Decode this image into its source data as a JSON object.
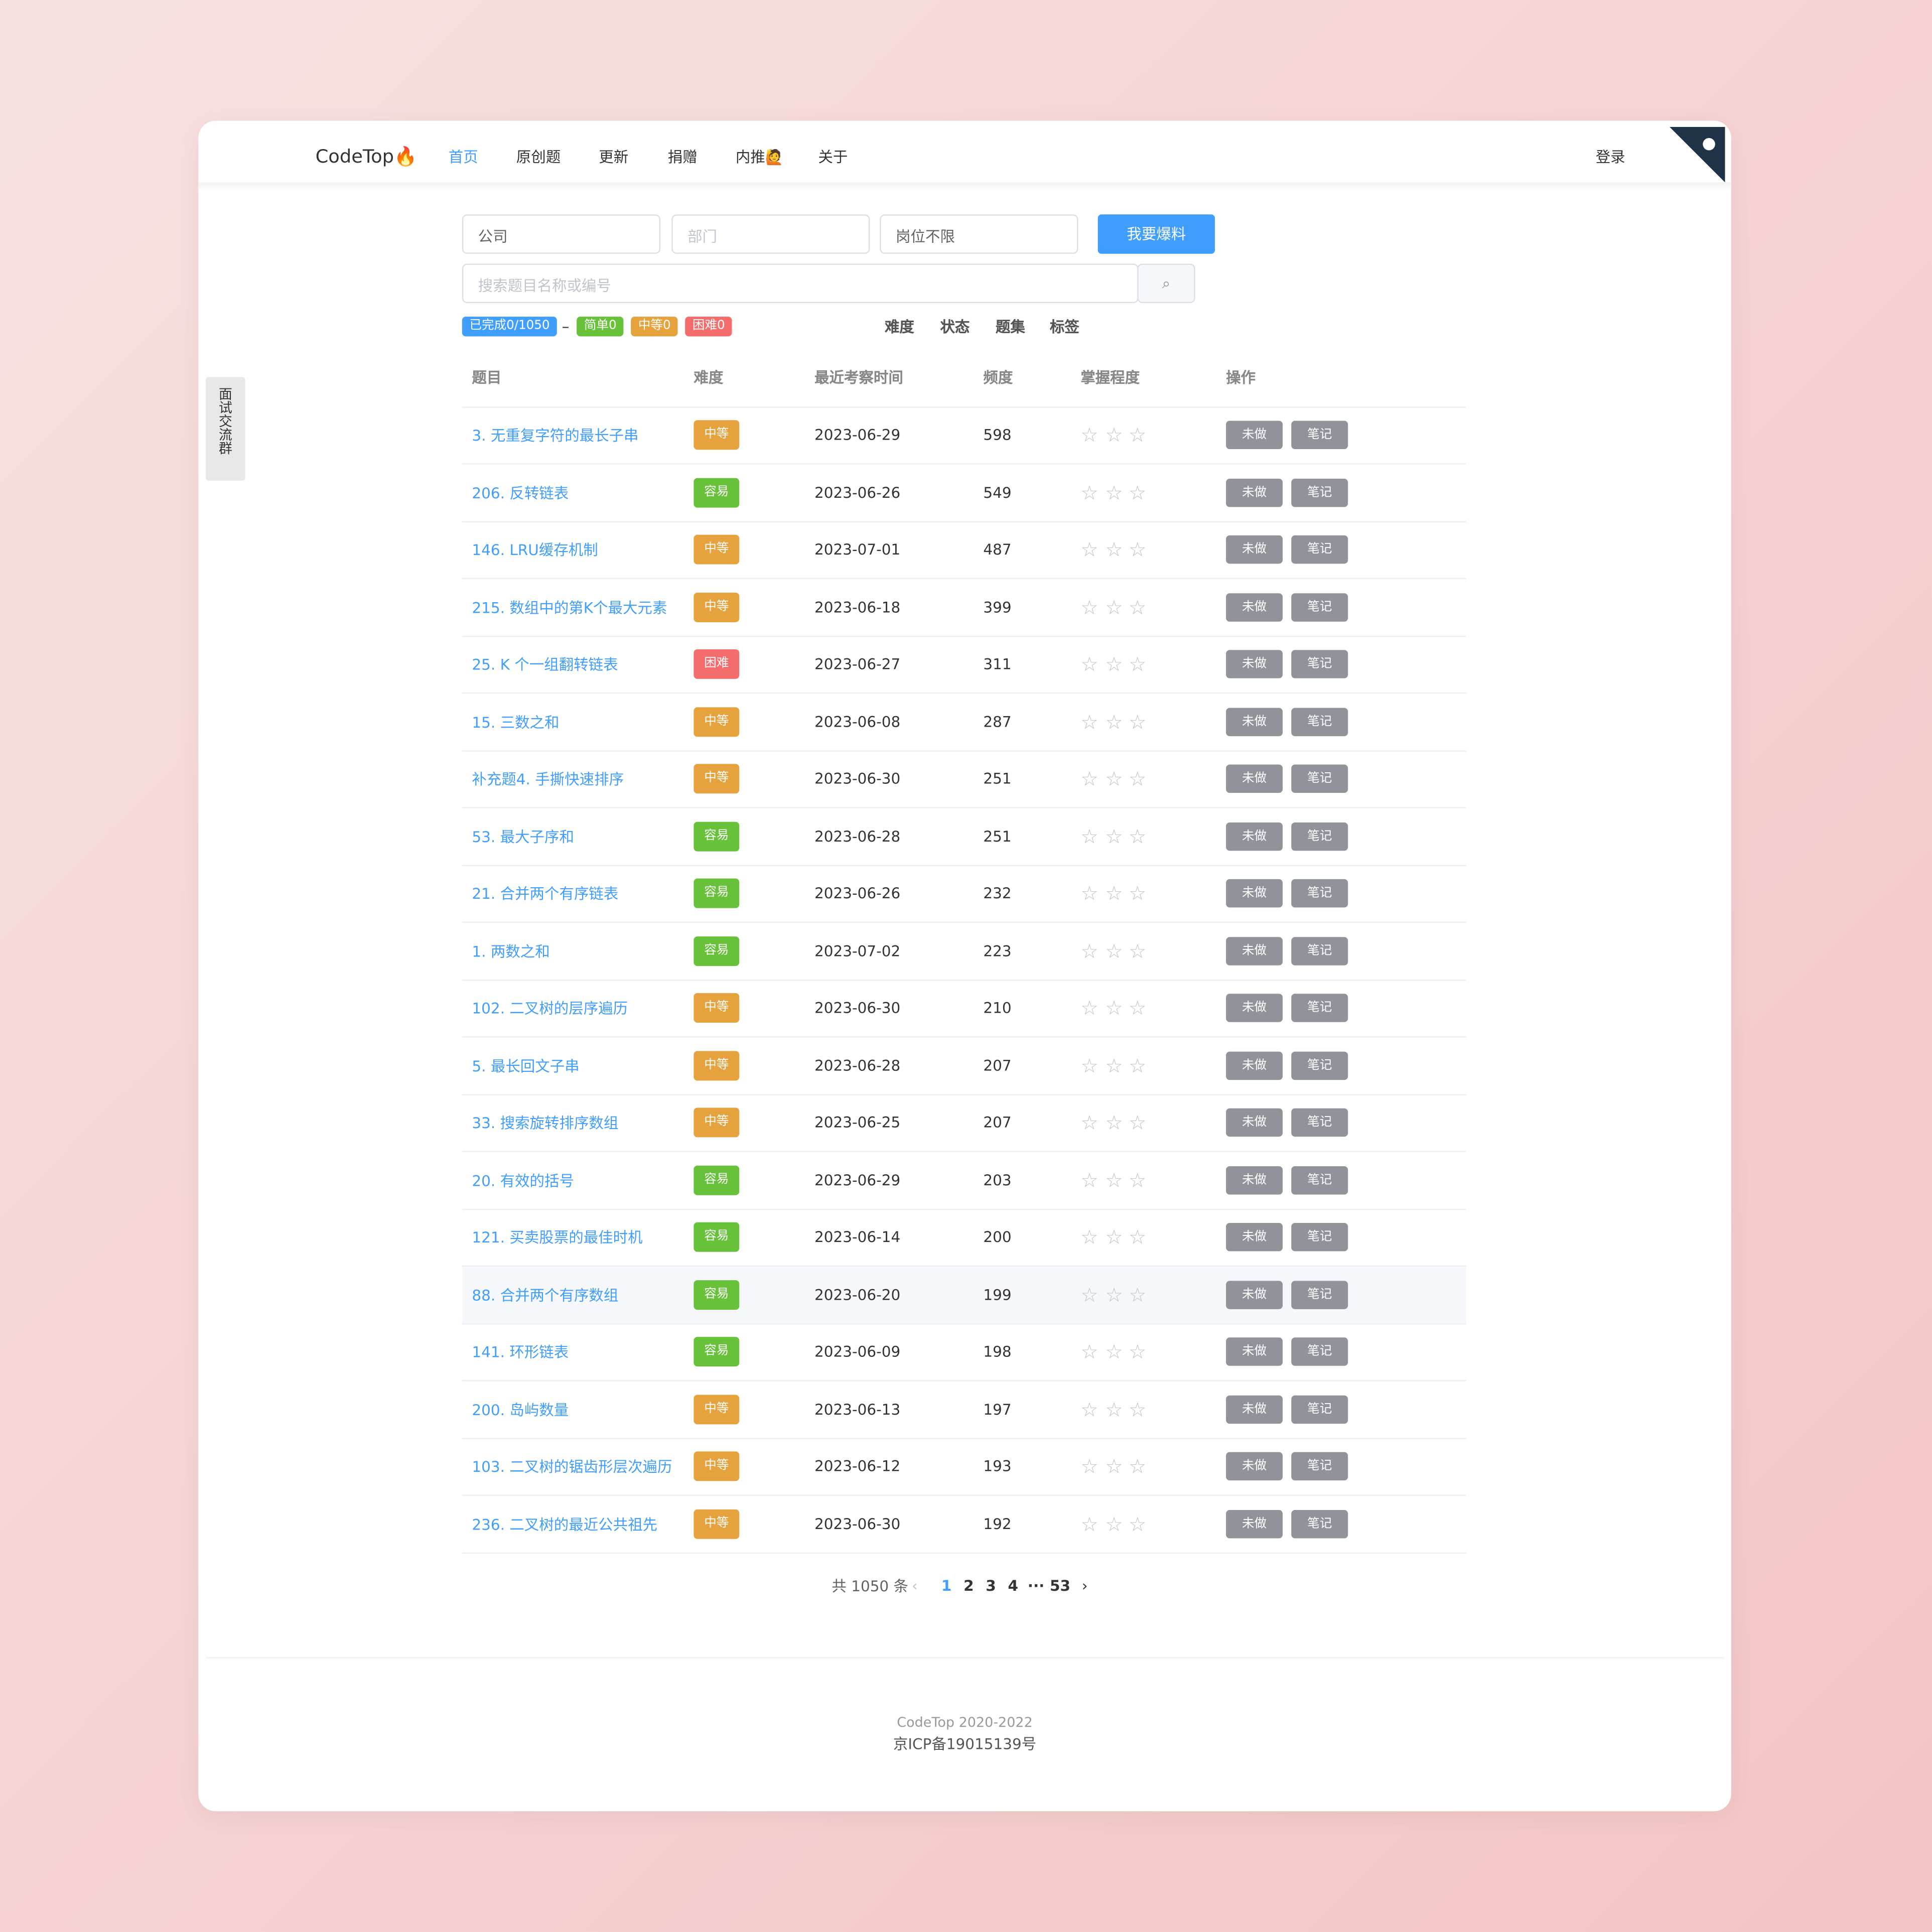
{
  "nav": {
    "logo": "CodeTop🔥",
    "items": [
      "首页",
      "原创题",
      "更新",
      "捐赠",
      "内推🙋",
      "关于"
    ],
    "login": "登录"
  },
  "side_tab": "面试交流群",
  "filters": {
    "company": "公司",
    "department": "部门",
    "position": "岗位不限",
    "report_button": "我要爆料",
    "search_placeholder": "搜索题目名称或编号"
  },
  "progress": {
    "done": "已完成0/1050",
    "dash": "–",
    "easy": "简单0",
    "medium": "中等0",
    "hard": "困难0"
  },
  "dropdowns": [
    "难度",
    "状态",
    "题集",
    "标签"
  ],
  "table": {
    "headers": [
      "题目",
      "难度",
      "最近考察时间",
      "频度",
      "掌握程度",
      "操作"
    ],
    "difficulty_colors": {
      "容易": "#67c23a",
      "中等": "#e6a23c",
      "困难": "#f56c6c"
    },
    "actions": {
      "not_done": "未做",
      "note": "笔记"
    },
    "rows": [
      [
        "3. 无重复字符的最长子串",
        "中等",
        "2023-06-29",
        598
      ],
      [
        "206. 反转链表",
        "容易",
        "2023-06-26",
        549
      ],
      [
        "146. LRU缓存机制",
        "中等",
        "2023-07-01",
        487
      ],
      [
        "215. 数组中的第K个最大元素",
        "中等",
        "2023-06-18",
        399
      ],
      [
        "25. K 个一组翻转链表",
        "困难",
        "2023-06-27",
        311
      ],
      [
        "15. 三数之和",
        "中等",
        "2023-06-08",
        287
      ],
      [
        "补充题4. 手撕快速排序",
        "中等",
        "2023-06-30",
        251
      ],
      [
        "53. 最大子序和",
        "容易",
        "2023-06-28",
        251
      ],
      [
        "21. 合并两个有序链表",
        "容易",
        "2023-06-26",
        232
      ],
      [
        "1. 两数之和",
        "容易",
        "2023-07-02",
        223
      ],
      [
        "102. 二叉树的层序遍历",
        "中等",
        "2023-06-30",
        210
      ],
      [
        "5. 最长回文子串",
        "中等",
        "2023-06-28",
        207
      ],
      [
        "33. 搜索旋转排序数组",
        "中等",
        "2023-06-25",
        207
      ],
      [
        "20. 有效的括号",
        "容易",
        "2023-06-29",
        203
      ],
      [
        "121. 买卖股票的最佳时机",
        "容易",
        "2023-06-14",
        200
      ],
      [
        "88. 合并两个有序数组",
        "容易",
        "2023-06-20",
        199
      ],
      [
        "141. 环形链表",
        "容易",
        "2023-06-09",
        198
      ],
      [
        "200. 岛屿数量",
        "中等",
        "2023-06-13",
        197
      ],
      [
        "103. 二叉树的锯齿形层次遍历",
        "中等",
        "2023-06-12",
        193
      ],
      [
        "236. 二叉树的最近公共祖先",
        "中等",
        "2023-06-30",
        192
      ]
    ]
  },
  "pagination": {
    "total": "共 1050 条",
    "pages": [
      1,
      2,
      3,
      4
    ],
    "ellipsis": "···",
    "last": 53
  },
  "footer": {
    "copyright": "CodeTop 2020-2022",
    "icp": "京ICP备19015139号"
  }
}
